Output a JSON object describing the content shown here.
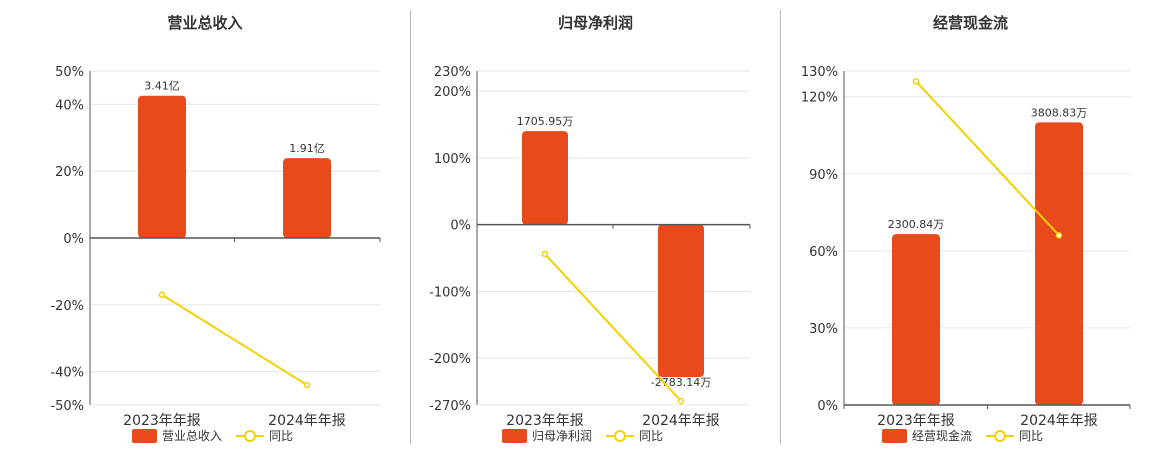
{
  "colors": {
    "bar": "#e84a1c",
    "line": "#f3d100",
    "grid": "#e6e6e6",
    "axis": "#555555"
  },
  "legend": {
    "ratio_label": "同比"
  },
  "chart_data": [
    {
      "type": "bar",
      "title": "营业总收入",
      "categories": [
        "2023年年报",
        "2024年年报"
      ],
      "series": [
        {
          "name": "营业总收入",
          "values": [
            3.41,
            1.91
          ],
          "data_labels": [
            "3.41亿",
            "1.91亿"
          ]
        },
        {
          "name": "同比",
          "type": "line",
          "values": [
            -17,
            -44
          ]
        }
      ],
      "yticks": [
        "50%",
        "40%",
        "20%",
        "0%",
        "-20%",
        "-40%",
        "-50%"
      ],
      "ylim": [
        -50,
        50
      ],
      "bar_pct": [
        42.6,
        23.9
      ]
    },
    {
      "type": "bar",
      "title": "归母净利润",
      "categories": [
        "2023年年报",
        "2024年年报"
      ],
      "series": [
        {
          "name": "归母净利润",
          "values": [
            1705.95,
            -2783.14
          ],
          "data_labels": [
            "1705.95万",
            "-2783.14万"
          ]
        },
        {
          "name": "同比",
          "type": "line",
          "values": [
            -44,
            -264
          ]
        }
      ],
      "yticks": [
        "230%",
        "200%",
        "100%",
        "0%",
        "-100%",
        "-200%",
        "-270%"
      ],
      "ylim": [
        -270,
        230
      ],
      "bar_pct": [
        140,
        -228
      ]
    },
    {
      "type": "bar",
      "title": "经营现金流",
      "categories": [
        "2023年年报",
        "2024年年报"
      ],
      "series": [
        {
          "name": "经营现金流",
          "values": [
            2300.84,
            3808.83
          ],
          "data_labels": [
            "2300.84万",
            "3808.83万"
          ]
        },
        {
          "name": "同比",
          "type": "line",
          "values": [
            126,
            66
          ]
        }
      ],
      "yticks": [
        "130%",
        "120%",
        "90%",
        "60%",
        "30%",
        "0%"
      ],
      "ylim": [
        0,
        130
      ],
      "bar_pct": [
        66.5,
        110
      ]
    }
  ]
}
